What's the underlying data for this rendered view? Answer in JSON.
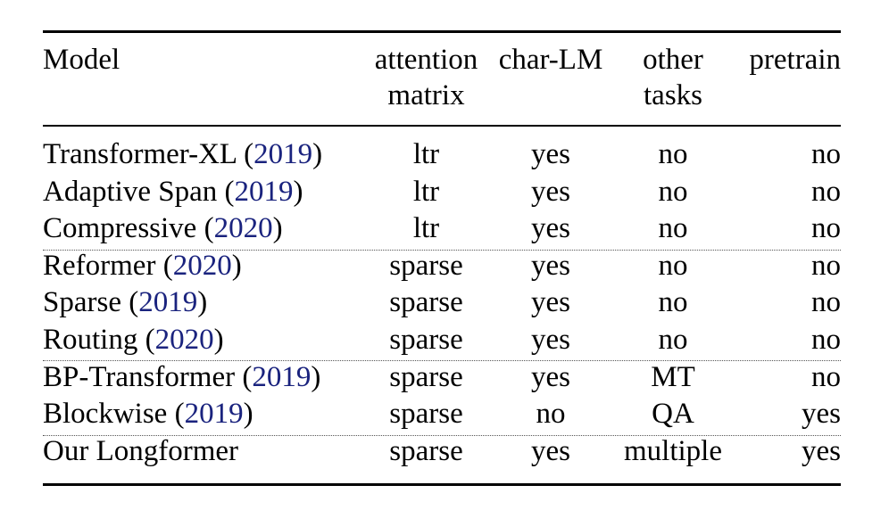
{
  "table": {
    "headers": {
      "model": "Model",
      "attention_line1": "attention",
      "attention_line2": "matrix",
      "char_lm": "char-LM",
      "other_line1": "other",
      "other_line2": "tasks",
      "pretrain": "pretrain"
    },
    "rows": [
      {
        "model": "Transformer-XL (",
        "year": "2019",
        "close": ")",
        "attention": "ltr",
        "char_lm": "yes",
        "other": "no",
        "pretrain": "no"
      },
      {
        "model": "Adaptive Span (",
        "year": "2019",
        "close": ")",
        "attention": "ltr",
        "char_lm": "yes",
        "other": "no",
        "pretrain": "no"
      },
      {
        "model": "Compressive (",
        "year": "2020",
        "close": ")",
        "attention": "ltr",
        "char_lm": "yes",
        "other": "no",
        "pretrain": "no"
      },
      {
        "model": "Reformer (",
        "year": "2020",
        "close": ")",
        "attention": "sparse",
        "char_lm": "yes",
        "other": "no",
        "pretrain": "no"
      },
      {
        "model": "Sparse (",
        "year": "2019",
        "close": ")",
        "attention": "sparse",
        "char_lm": "yes",
        "other": "no",
        "pretrain": "no"
      },
      {
        "model": "Routing (",
        "year": "2020",
        "close": ")",
        "attention": "sparse",
        "char_lm": "yes",
        "other": "no",
        "pretrain": "no"
      },
      {
        "model": "BP-Transformer (",
        "year": "2019",
        "close": ")",
        "attention": "sparse",
        "char_lm": "yes",
        "other": "MT",
        "pretrain": "no"
      },
      {
        "model": "Blockwise (",
        "year": "2019",
        "close": ")",
        "attention": "sparse",
        "char_lm": "no",
        "other": "QA",
        "pretrain": "yes"
      },
      {
        "model": "Our Longformer",
        "year": "",
        "close": "",
        "attention": "sparse",
        "char_lm": "yes",
        "other": "multiple",
        "pretrain": "yes"
      }
    ],
    "colors": {
      "citation": "#1a237e",
      "text": "#000000",
      "rule": "#000000"
    }
  }
}
